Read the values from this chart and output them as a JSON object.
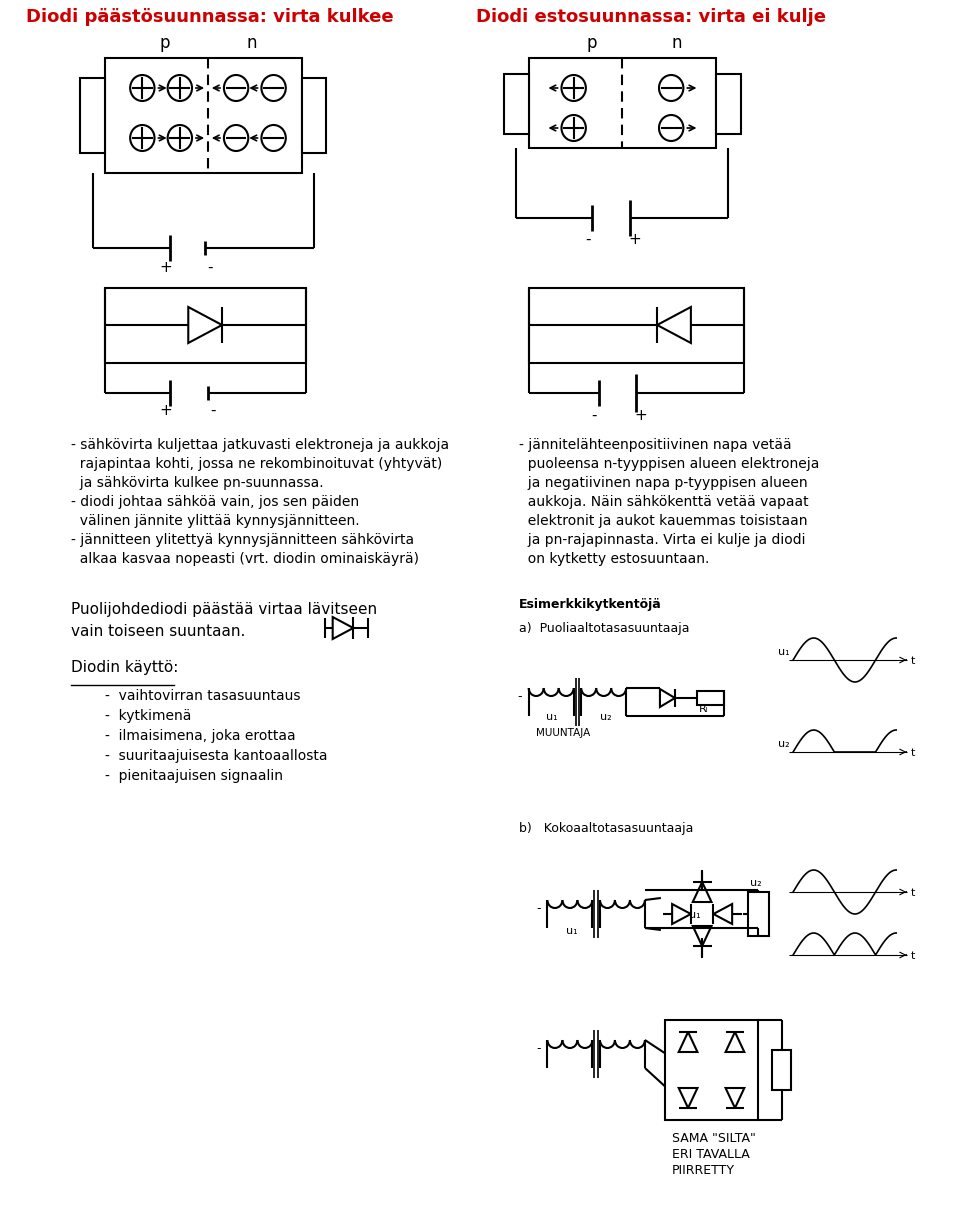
{
  "title_left": "Diodi päästösuunnassa: virta kulkee",
  "title_right": "Diodi estosuunnassa: virta ei kulje",
  "title_color": "#cc0000",
  "bg_color": "#ffffff",
  "text_color": "#000000",
  "body_text_left": [
    "- sähkövirta kuljettaa jatkuvasti elektroneja ja aukkoja",
    "  rajapintaa kohti, jossa ne rekombinoituvat (yhtyvät)",
    "  ja sähkövirta kulkee pn-suunnassa.",
    "- diodi johtaa sähköä vain, jos sen päiden",
    "  välinen jännite ylittää kynnysjännitteen.",
    "- jännitteen ylitettyä kynnysjännitteen sähkövirta",
    "  alkaa kasvaa nopeasti (vrt. diodin ominaiskäyrä)"
  ],
  "body_text_right": [
    "- jännitelähteenpositiivinen napa vetää",
    "  puoleensa n-tyyppisen alueen elektroneja",
    "  ja negatiivinen napa p-tyyppisen alueen",
    "  aukkoja. Näin sähkökenttä vetää vapaat",
    "  elektronit ja aukot kauemmas toisistaan",
    "  ja pn-rajapinnasta. Virta ei kulje ja diodi",
    "  on kytketty estosuuntaan."
  ],
  "lower_left_text1": "Puolijohdediodi päästää virtaa lävitseen",
  "lower_left_text2": "vain toiseen suuntaan.",
  "diodin_kaytto_title": "Diodin käyttö:",
  "diodin_kaytto_items": [
    "vaihtovirran tasasuuntaus",
    "kytkimenä",
    "ilmaisimena, joka erottaa",
    "suuritaajuisesta kantoaallosta",
    "pienitaajuisen signaalin"
  ],
  "esimerkkikytkentoja": "Esimerkkikytkentöjä",
  "label_a": "a)  Puoliaaltotasasuuntaaja",
  "label_muuntaja": "MUUNTAJA",
  "label_b": "b)   Kokoaaltotasasuuntaaja",
  "label_sama_silta": "SAMA \"SILTA\"",
  "label_eri_tavalla": "ERI TAVALLA",
  "label_piirretty": "PIIRRETTY"
}
